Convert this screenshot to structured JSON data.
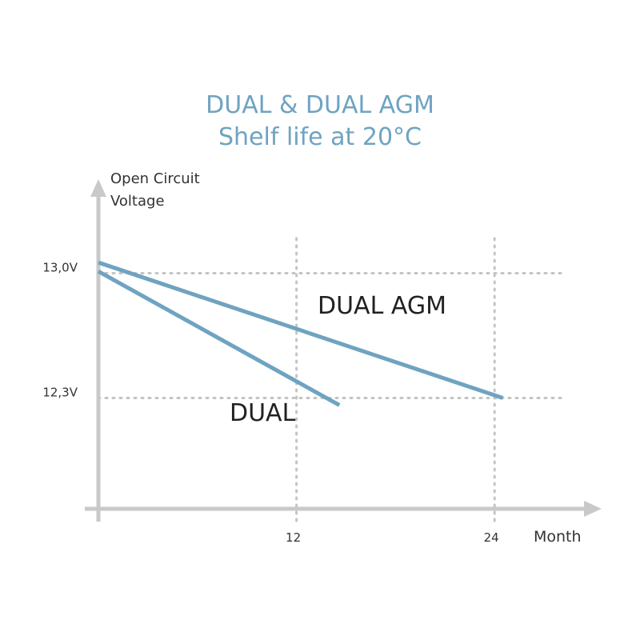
{
  "chart_data": {
    "type": "line",
    "title": "DUAL & DUAL AGM",
    "subtitle": "Shelf life at 20°C",
    "ylabel_lines": [
      "Open Circuit",
      "Voltage"
    ],
    "xlabel": "Month",
    "x_ticks": [
      {
        "value": 12,
        "label": "12"
      },
      {
        "value": 24,
        "label": "24"
      }
    ],
    "y_ticks": [
      {
        "value": 13.0,
        "label": "13,0V"
      },
      {
        "value": 12.3,
        "label": "12,3V"
      }
    ],
    "xlim": [
      0,
      30
    ],
    "ylim": [
      11.67,
      13.5
    ],
    "grid": "dotted at labeled ticks",
    "series": [
      {
        "name": "DUAL AGM",
        "x": [
          0,
          24.5
        ],
        "y": [
          13.06,
          12.3
        ]
      },
      {
        "name": "DUAL",
        "x": [
          0,
          14.6
        ],
        "y": [
          13.01,
          12.26
        ]
      }
    ],
    "colors": {
      "line": "#6fa3c1",
      "axis": "#c9c9c9",
      "grid": "#c4c4c4",
      "title": "#6fa3c1"
    }
  }
}
